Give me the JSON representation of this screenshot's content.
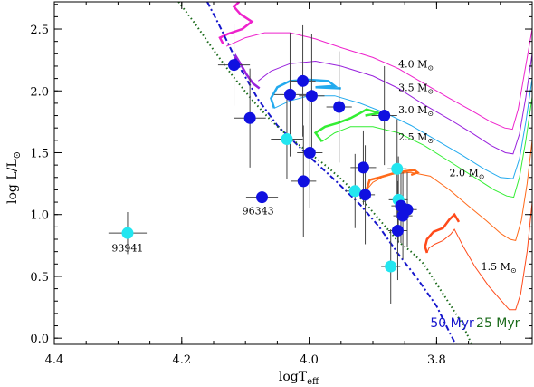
{
  "chart_data": {
    "type": "scatter",
    "title": "",
    "xlabel_main": "logT",
    "xlabel_sub": "eff",
    "ylabel_main": "log  L/L",
    "ylabel_sun": "⊙",
    "xlim": [
      4.4,
      3.65
    ],
    "ylim": [
      -0.05,
      2.72
    ],
    "x_reversed": true,
    "grid": false,
    "x_ticks": [
      4.4,
      4.2,
      4.0,
      3.8
    ],
    "x_tick_labels": [
      "4.4",
      "4.2",
      "4.0",
      "3.8"
    ],
    "y_ticks": [
      0.0,
      0.5,
      1.0,
      1.5,
      2.0,
      2.5
    ],
    "y_tick_labels": [
      "0.0",
      "0.5",
      "1.0",
      "1.5",
      "2.0",
      "2.5"
    ],
    "colors": {
      "blue_points": "#1010e0",
      "cyan_points": "#22e6f0",
      "isochrone_50": "#1515cc",
      "isochrone_25": "#1a6a1a"
    },
    "stars": [
      {
        "x": 4.118,
        "y": 2.21,
        "xerr": 0.025,
        "yerr": 0.33,
        "color": "blue"
      },
      {
        "x": 4.093,
        "y": 1.78,
        "xerr": 0.025,
        "yerr": 0.4,
        "color": "blue"
      },
      {
        "x": 4.03,
        "y": 1.97,
        "xerr": 0.025,
        "yerr": 0.5,
        "color": "blue"
      },
      {
        "x": 4.01,
        "y": 2.08,
        "xerr": 0.02,
        "yerr": 0.45,
        "color": "blue"
      },
      {
        "x": 3.996,
        "y": 1.96,
        "xerr": 0.02,
        "yerr": 0.5,
        "color": "blue"
      },
      {
        "x": 4.035,
        "y": 1.61,
        "xerr": 0.025,
        "yerr": 0.32,
        "color": "cyan"
      },
      {
        "x": 3.999,
        "y": 1.5,
        "xerr": 0.02,
        "yerr": 0.45,
        "color": "blue"
      },
      {
        "x": 4.009,
        "y": 1.27,
        "xerr": 0.02,
        "yerr": 0.45,
        "color": "blue"
      },
      {
        "x": 4.074,
        "y": 1.14,
        "xerr": 0.025,
        "yerr": 0.2,
        "color": "blue",
        "label": "96343"
      },
      {
        "x": 4.285,
        "y": 0.85,
        "xerr": 0.03,
        "yerr": 0.17,
        "color": "cyan",
        "label": "93941"
      },
      {
        "x": 3.953,
        "y": 1.87,
        "xerr": 0.02,
        "yerr": 0.45,
        "color": "blue"
      },
      {
        "x": 3.882,
        "y": 1.8,
        "xerr": 0.02,
        "yerr": 0.4,
        "color": "blue"
      },
      {
        "x": 3.915,
        "y": 1.38,
        "xerr": 0.02,
        "yerr": 0.3,
        "color": "blue"
      },
      {
        "x": 3.928,
        "y": 1.19,
        "xerr": 0.015,
        "yerr": 0.3,
        "color": "cyan"
      },
      {
        "x": 3.912,
        "y": 1.16,
        "xerr": 0.015,
        "yerr": 0.4,
        "color": "blue"
      },
      {
        "x": 3.862,
        "y": 1.37,
        "xerr": 0.015,
        "yerr": 0.4,
        "color": "cyan"
      },
      {
        "x": 3.86,
        "y": 1.12,
        "xerr": 0.015,
        "yerr": 0.35,
        "color": "cyan"
      },
      {
        "x": 3.856,
        "y": 1.07,
        "xerr": 0.015,
        "yerr": 0.3,
        "color": "blue"
      },
      {
        "x": 3.846,
        "y": 1.04,
        "xerr": 0.015,
        "yerr": 0.3,
        "color": "blue"
      },
      {
        "x": 3.853,
        "y": 0.99,
        "xerr": 0.015,
        "yerr": 0.35,
        "color": "blue"
      },
      {
        "x": 3.861,
        "y": 0.87,
        "xerr": 0.015,
        "yerr": 0.4,
        "color": "blue"
      },
      {
        "x": 3.872,
        "y": 0.58,
        "xerr": 0.015,
        "yerr": 0.3,
        "color": "cyan"
      }
    ],
    "tracks": [
      {
        "mass": "1.5",
        "label": "1.5 M",
        "color": "#ff4a1a",
        "label_xy": [
          3.73,
          0.55
        ],
        "points": [
          [
            3.815,
            0.69
          ],
          [
            3.812,
            0.73
          ],
          [
            3.803,
            0.76
          ],
          [
            3.79,
            0.79
          ],
          [
            3.778,
            0.84
          ],
          [
            3.772,
            0.88
          ],
          [
            3.758,
            0.74
          ],
          [
            3.74,
            0.58
          ],
          [
            3.718,
            0.42
          ],
          [
            3.698,
            0.3
          ],
          [
            3.686,
            0.23
          ],
          [
            3.676,
            0.23
          ],
          [
            3.668,
            0.36
          ],
          [
            3.658,
            0.7
          ],
          [
            3.65,
            1.1
          ]
        ]
      },
      {
        "mass": "2.0",
        "label": "2.0 M",
        "color": "#ff6a1a",
        "label_xy": [
          3.78,
          1.31
        ],
        "points": [
          [
            3.91,
            1.2
          ],
          [
            3.9,
            1.26
          ],
          [
            3.886,
            1.3
          ],
          [
            3.866,
            1.33
          ],
          [
            3.84,
            1.34
          ],
          [
            3.81,
            1.31
          ],
          [
            3.78,
            1.2
          ],
          [
            3.75,
            1.07
          ],
          [
            3.722,
            0.95
          ],
          [
            3.7,
            0.85
          ],
          [
            3.685,
            0.8
          ],
          [
            3.676,
            0.79
          ],
          [
            3.667,
            0.95
          ],
          [
            3.658,
            1.25
          ],
          [
            3.65,
            1.6
          ]
        ]
      },
      {
        "mass": "2.5",
        "label": "2.5 M",
        "color": "#33ee33",
        "label_xy": [
          3.86,
          1.6
        ],
        "points": [
          [
            3.98,
            1.59
          ],
          [
            3.96,
            1.66
          ],
          [
            3.935,
            1.71
          ],
          [
            3.9,
            1.71
          ],
          [
            3.86,
            1.66
          ],
          [
            3.82,
            1.56
          ],
          [
            3.78,
            1.43
          ],
          [
            3.74,
            1.3
          ],
          [
            3.71,
            1.2
          ],
          [
            3.69,
            1.15
          ],
          [
            3.679,
            1.14
          ],
          [
            3.67,
            1.3
          ],
          [
            3.66,
            1.6
          ],
          [
            3.65,
            1.95
          ]
        ]
      },
      {
        "mass": "3.0",
        "label": "3.0 M",
        "color": "#22aaee",
        "label_xy": [
          3.86,
          1.82
        ],
        "points": [
          [
            4.055,
            1.86
          ],
          [
            4.03,
            1.92
          ],
          [
            4.0,
            1.96
          ],
          [
            3.96,
            1.96
          ],
          [
            3.92,
            1.9
          ],
          [
            3.88,
            1.82
          ],
          [
            3.84,
            1.72
          ],
          [
            3.8,
            1.6
          ],
          [
            3.76,
            1.48
          ],
          [
            3.726,
            1.37
          ],
          [
            3.7,
            1.3
          ],
          [
            3.68,
            1.29
          ],
          [
            3.67,
            1.45
          ],
          [
            3.66,
            1.75
          ],
          [
            3.65,
            2.1
          ]
        ]
      },
      {
        "mass": "3.5",
        "label": "3.5 M",
        "color": "#9922dd",
        "label_xy": [
          3.86,
          2.0
        ],
        "points": [
          [
            4.08,
            2.08
          ],
          [
            4.06,
            2.16
          ],
          [
            4.03,
            2.22
          ],
          [
            3.99,
            2.24
          ],
          [
            3.95,
            2.2
          ],
          [
            3.9,
            2.12
          ],
          [
            3.86,
            2.02
          ],
          [
            3.82,
            1.89
          ],
          [
            3.78,
            1.77
          ],
          [
            3.745,
            1.66
          ],
          [
            3.715,
            1.56
          ],
          [
            3.692,
            1.5
          ],
          [
            3.68,
            1.49
          ],
          [
            3.67,
            1.65
          ],
          [
            3.66,
            1.95
          ],
          [
            3.65,
            2.3
          ]
        ]
      },
      {
        "mass": "4.0",
        "label": "4.0 M",
        "color": "#ee22cc",
        "label_xy": [
          3.86,
          2.19
        ],
        "points": [
          [
            4.13,
            2.36
          ],
          [
            4.1,
            2.43
          ],
          [
            4.07,
            2.47
          ],
          [
            4.03,
            2.47
          ],
          [
            3.99,
            2.42
          ],
          [
            3.95,
            2.35
          ],
          [
            3.9,
            2.27
          ],
          [
            3.86,
            2.18
          ],
          [
            3.82,
            2.06
          ],
          [
            3.78,
            1.94
          ],
          [
            3.745,
            1.84
          ],
          [
            3.715,
            1.75
          ],
          [
            3.693,
            1.7
          ],
          [
            3.681,
            1.69
          ],
          [
            3.672,
            1.85
          ],
          [
            3.662,
            2.15
          ],
          [
            3.65,
            2.5
          ]
        ]
      }
    ],
    "loops": [
      {
        "color": "#ee22cc",
        "points": [
          [
            4.135,
            2.38
          ],
          [
            4.14,
            2.43
          ],
          [
            4.128,
            2.46
          ],
          [
            4.105,
            2.5
          ],
          [
            4.09,
            2.56
          ],
          [
            4.108,
            2.62
          ],
          [
            4.118,
            2.68
          ],
          [
            4.11,
            2.72
          ]
        ]
      },
      {
        "color": "#9922dd",
        "points": [
          [
            4.12,
            2.2
          ],
          [
            4.115,
            2.28
          ],
          [
            4.108,
            2.22
          ],
          [
            4.098,
            2.13
          ],
          [
            4.088,
            2.06
          ],
          [
            4.078,
            2.02
          ]
        ]
      },
      {
        "color": "#22aaee",
        "points": [
          [
            4.055,
            1.86
          ],
          [
            4.06,
            1.94
          ],
          [
            4.05,
            2.03
          ],
          [
            4.03,
            2.08
          ],
          [
            4.0,
            2.09
          ],
          [
            3.97,
            2.08
          ],
          [
            3.96,
            2.04
          ],
          [
            3.99,
            2.03
          ],
          [
            3.95,
            2.02
          ]
        ]
      },
      {
        "color": "#33ee33",
        "points": [
          [
            3.98,
            1.59
          ],
          [
            3.99,
            1.66
          ],
          [
            3.975,
            1.71
          ],
          [
            3.955,
            1.74
          ],
          [
            3.935,
            1.78
          ],
          [
            3.92,
            1.82
          ],
          [
            3.91,
            1.85
          ],
          [
            3.89,
            1.82
          ],
          [
            3.912,
            1.8
          ]
        ]
      },
      {
        "color": "#ff6a1a",
        "points": [
          [
            3.91,
            1.2
          ],
          [
            3.905,
            1.28
          ],
          [
            3.89,
            1.3
          ],
          [
            3.87,
            1.33
          ],
          [
            3.85,
            1.35
          ],
          [
            3.835,
            1.36
          ],
          [
            3.83,
            1.34
          ],
          [
            3.84,
            1.32
          ]
        ]
      },
      {
        "color": "#ff4a1a",
        "points": [
          [
            3.815,
            0.69
          ],
          [
            3.818,
            0.74
          ],
          [
            3.815,
            0.8
          ],
          [
            3.805,
            0.86
          ],
          [
            3.79,
            0.89
          ],
          [
            3.78,
            0.96
          ],
          [
            3.772,
            1.0
          ],
          [
            3.765,
            0.94
          ]
        ]
      }
    ],
    "isochrones": [
      {
        "name": "50 Myr",
        "color": "#1515cc",
        "dash": "6,3,2,3",
        "label_xy": [
          3.81,
          0.09
        ],
        "points": [
          [
            4.16,
            2.72
          ],
          [
            4.14,
            2.52
          ],
          [
            4.11,
            2.2
          ],
          [
            4.08,
            1.93
          ],
          [
            4.05,
            1.72
          ],
          [
            4.02,
            1.57
          ],
          [
            4.0,
            1.47
          ],
          [
            3.96,
            1.28
          ],
          [
            3.92,
            1.08
          ],
          [
            3.89,
            0.9
          ],
          [
            3.86,
            0.68
          ],
          [
            3.83,
            0.48
          ],
          [
            3.8,
            0.26
          ],
          [
            3.78,
            0.05
          ],
          [
            3.77,
            -0.05
          ]
        ]
      },
      {
        "name": "25 Myr",
        "color": "#1a6a1a",
        "dash": "1.5,3",
        "label_xy": [
          3.738,
          0.09
        ],
        "points": [
          [
            4.205,
            2.72
          ],
          [
            4.18,
            2.55
          ],
          [
            4.15,
            2.33
          ],
          [
            4.12,
            2.12
          ],
          [
            4.09,
            1.93
          ],
          [
            4.06,
            1.76
          ],
          [
            4.03,
            1.62
          ],
          [
            4.0,
            1.5
          ],
          [
            3.97,
            1.38
          ],
          [
            3.94,
            1.24
          ],
          [
            3.91,
            1.08
          ],
          [
            3.88,
            0.9
          ],
          [
            3.86,
            0.78
          ],
          [
            3.84,
            0.7
          ],
          [
            3.82,
            0.6
          ],
          [
            3.8,
            0.44
          ],
          [
            3.78,
            0.28
          ],
          [
            3.76,
            0.12
          ],
          [
            3.745,
            -0.05
          ]
        ]
      }
    ],
    "annotations": [
      {
        "text": "96343",
        "x": 4.105,
        "y": 1.0
      },
      {
        "text": "93941",
        "x": 4.31,
        "y": 0.7
      }
    ]
  }
}
